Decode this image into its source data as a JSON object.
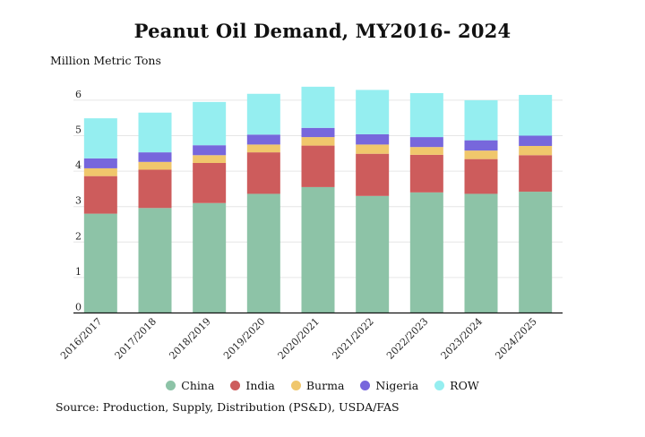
{
  "chart_data": {
    "type": "bar",
    "stacked": true,
    "title": "Peanut Oil Demand, MY2016- 2024",
    "ylabel": "Million Metric Tons",
    "ylim": [
      0,
      6.5
    ],
    "yticks": [
      0,
      1,
      2,
      3,
      4,
      5,
      6
    ],
    "grid": true,
    "legend_position": "bottom",
    "source": "Source: Production, Supply, Distribution (PS&D), USDA/FAS",
    "categories": [
      "2016/2017",
      "2017/2018",
      "2018/2019",
      "2019/2020",
      "2020/2021",
      "2021/2022",
      "2022/2023",
      "2023/2024",
      "2024/2025"
    ],
    "series": [
      {
        "name": "China",
        "color": "#8dc3a7",
        "values": [
          2.8,
          2.96,
          3.1,
          3.36,
          3.55,
          3.3,
          3.4,
          3.36,
          3.42
        ]
      },
      {
        "name": "India",
        "color": "#cd5c5c",
        "values": [
          1.06,
          1.08,
          1.13,
          1.17,
          1.17,
          1.19,
          1.06,
          0.98,
          1.03
        ]
      },
      {
        "name": "Burma",
        "color": "#f0c76c",
        "values": [
          0.22,
          0.22,
          0.22,
          0.22,
          0.24,
          0.26,
          0.22,
          0.24,
          0.26
        ]
      },
      {
        "name": "Nigeria",
        "color": "#7767dc",
        "values": [
          0.28,
          0.27,
          0.28,
          0.28,
          0.26,
          0.29,
          0.28,
          0.29,
          0.29
        ]
      },
      {
        "name": "ROW",
        "color": "#95eef0",
        "values": [
          1.13,
          1.12,
          1.22,
          1.15,
          1.16,
          1.25,
          1.24,
          1.13,
          1.15
        ]
      }
    ]
  }
}
